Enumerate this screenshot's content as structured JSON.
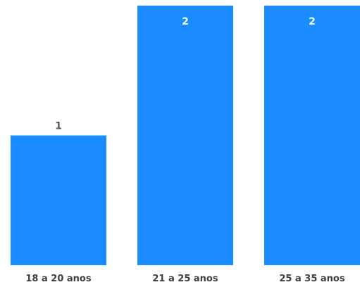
{
  "chart_data": {
    "type": "bar",
    "title": "",
    "xlabel": "",
    "ylabel": "",
    "categories": [
      "18 a 20 anos",
      "21 a 25 anos",
      "25 a 35 anos"
    ],
    "values": [
      1,
      2,
      2
    ],
    "ylim": [
      0,
      2
    ],
    "grid": false,
    "legend": "none",
    "colors": {
      "bar": "#1a8cff",
      "label_inside": "#ffffff",
      "label_outside": "#595959",
      "tick_label": "#404040"
    }
  }
}
